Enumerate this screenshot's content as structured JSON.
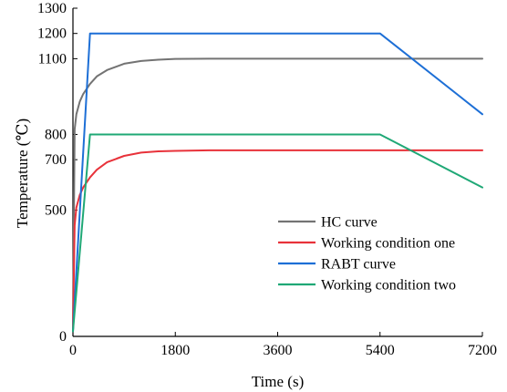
{
  "chart_data": {
    "type": "line",
    "title": "",
    "xlabel": "Time (s)",
    "ylabel": "Temperature (℃)",
    "xlim": [
      0,
      7200
    ],
    "ylim": [
      0,
      1300
    ],
    "xticks": [
      0,
      1800,
      3600,
      5400,
      7200
    ],
    "yticks": [
      0,
      500,
      700,
      800,
      1100,
      1200,
      1300
    ],
    "grid": false,
    "legend_position": "lower-right",
    "series": [
      {
        "name": "HC curve",
        "color": "#737373",
        "x": [
          0,
          30,
          60,
          120,
          180,
          300,
          420,
          600,
          900,
          1200,
          1500,
          1800,
          2400,
          3000,
          3600,
          4200,
          4800,
          5400,
          6000,
          6600,
          7200
        ],
        "y": [
          20,
          820,
          880,
          930,
          960,
          1000,
          1030,
          1055,
          1080,
          1091,
          1096,
          1099,
          1100,
          1100,
          1100,
          1100,
          1100,
          1100,
          1100,
          1100,
          1100
        ]
      },
      {
        "name": "Working condition one",
        "color": "#e8323a",
        "x": [
          0,
          30,
          60,
          120,
          180,
          300,
          420,
          600,
          900,
          1200,
          1500,
          1800,
          2400,
          3000,
          3600,
          4200,
          4800,
          5400,
          6000,
          6600,
          7200
        ],
        "y": [
          20,
          440,
          510,
          560,
          590,
          630,
          660,
          690,
          715,
          728,
          733,
          735,
          737,
          737,
          737,
          737,
          737,
          737,
          737,
          737,
          737
        ]
      },
      {
        "name": "RABT curve",
        "color": "#1d6fd6",
        "x": [
          0,
          300,
          5400,
          7200
        ],
        "y": [
          20,
          1200,
          1200,
          880
        ]
      },
      {
        "name": "Working condition two",
        "color": "#1fa876",
        "x": [
          0,
          300,
          5400,
          7200
        ],
        "y": [
          20,
          800,
          800,
          590
        ]
      }
    ]
  }
}
